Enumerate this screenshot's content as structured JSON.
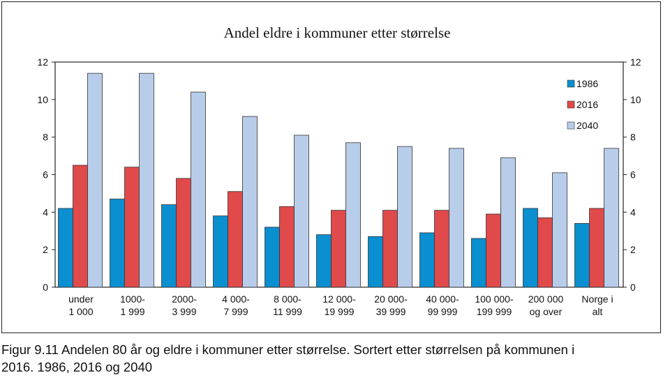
{
  "chart_data": {
    "type": "bar",
    "title": "Andel eldre i kommuner etter størrelse",
    "categories": [
      [
        "under",
        "1 000"
      ],
      [
        "1000-",
        "1 999"
      ],
      [
        "2000-",
        "3 999"
      ],
      [
        "4 000-",
        "7 999"
      ],
      [
        "8 000-",
        "11 999"
      ],
      [
        "12 000-",
        "19 999"
      ],
      [
        "20 000-",
        "39 999"
      ],
      [
        "40 000-",
        "99 999"
      ],
      [
        "100 000-",
        "199 999"
      ],
      [
        "200 000",
        "og over"
      ],
      [
        "Norge i",
        "alt"
      ]
    ],
    "series": [
      {
        "name": "1986",
        "color": "#0a8fd0",
        "values": [
          4.2,
          4.7,
          4.4,
          3.8,
          3.2,
          2.8,
          2.7,
          2.9,
          2.6,
          4.2,
          3.4
        ]
      },
      {
        "name": "2016",
        "color": "#e04a4a",
        "values": [
          6.5,
          6.4,
          5.8,
          5.1,
          4.3,
          4.1,
          4.1,
          4.1,
          3.9,
          3.7,
          4.2
        ]
      },
      {
        "name": "2040",
        "color": "#b8cdea",
        "values": [
          11.4,
          11.4,
          10.4,
          9.1,
          8.1,
          7.7,
          7.5,
          7.4,
          6.9,
          6.1,
          7.4
        ]
      }
    ],
    "ylim": [
      0,
      12
    ],
    "yticks": [
      0,
      2,
      4,
      6,
      8,
      10,
      12
    ],
    "secondary_y_axis": true,
    "legend_position": "top-right",
    "grid": false
  },
  "caption": {
    "line1": "Figur 9.11  Andelen 80 år og eldre i kommuner etter størrelse. Sortert etter størrelsen på kommunen i",
    "line2": "2016. 1986, 2016 og 2040"
  }
}
